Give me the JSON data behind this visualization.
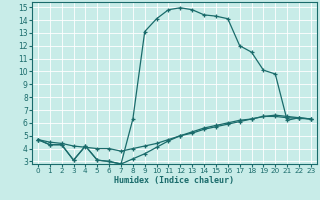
{
  "title": "",
  "xlabel": "Humidex (Indice chaleur)",
  "bg_color": "#c8ece8",
  "line_color": "#1a6b6b",
  "grid_color": "#b0ddd8",
  "xlim": [
    -0.5,
    23.5
  ],
  "ylim": [
    2.8,
    15.4
  ],
  "xticks": [
    0,
    1,
    2,
    3,
    4,
    5,
    6,
    7,
    8,
    9,
    10,
    11,
    12,
    13,
    14,
    15,
    16,
    17,
    18,
    19,
    20,
    21,
    22,
    23
  ],
  "yticks": [
    3,
    4,
    5,
    6,
    7,
    8,
    9,
    10,
    11,
    12,
    13,
    14,
    15
  ],
  "curve1_x": [
    0,
    1,
    2,
    3,
    4,
    5,
    6,
    7,
    8,
    9,
    10,
    11,
    12,
    13,
    14,
    15,
    16,
    17,
    18,
    19,
    20,
    21,
    22,
    23
  ],
  "curve1_y": [
    4.7,
    4.3,
    4.3,
    3.1,
    4.2,
    3.1,
    3.0,
    2.8,
    6.3,
    13.1,
    14.1,
    14.8,
    14.95,
    14.8,
    14.4,
    14.3,
    14.1,
    12.0,
    11.5,
    10.1,
    9.8,
    6.2,
    6.4,
    6.3
  ],
  "curve2_x": [
    0,
    1,
    2,
    3,
    4,
    5,
    6,
    7,
    8,
    9,
    10,
    11,
    12,
    13,
    14,
    15,
    16,
    17,
    18,
    19,
    20,
    21,
    22,
    23
  ],
  "curve2_y": [
    4.7,
    4.3,
    4.3,
    3.1,
    4.2,
    3.1,
    3.0,
    2.8,
    3.2,
    3.6,
    4.1,
    4.6,
    5.0,
    5.3,
    5.6,
    5.8,
    6.0,
    6.2,
    6.3,
    6.5,
    6.5,
    6.4,
    6.35,
    6.3
  ],
  "curve3_x": [
    0,
    1,
    2,
    3,
    4,
    5,
    6,
    7,
    8,
    9,
    10,
    11,
    12,
    13,
    14,
    15,
    16,
    17,
    18,
    19,
    20,
    21,
    22,
    23
  ],
  "curve3_y": [
    4.7,
    4.5,
    4.4,
    4.2,
    4.1,
    4.0,
    4.0,
    3.8,
    4.0,
    4.2,
    4.4,
    4.7,
    5.0,
    5.2,
    5.5,
    5.7,
    5.9,
    6.1,
    6.3,
    6.5,
    6.6,
    6.5,
    6.4,
    6.3
  ]
}
